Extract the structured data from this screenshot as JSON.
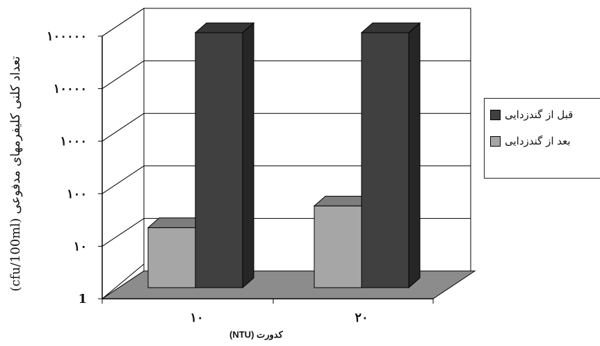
{
  "chart_data": {
    "type": "bar",
    "style": "3d",
    "yscale": "log",
    "ylim": [
      1,
      100000
    ],
    "yticks": [
      1,
      10,
      100,
      1000,
      10000,
      100000
    ],
    "ytick_labels": [
      "1",
      "۱۰",
      "۱۰۰",
      "۱۰۰۰",
      "۱۰۰۰۰",
      "۱۰۰۰۰۰"
    ],
    "categories": [
      "۱۰",
      "۲۰"
    ],
    "series": [
      {
        "name": "بعد از گندزدایی",
        "color": "#a6a6a6",
        "values": [
          15,
          40
        ]
      },
      {
        "name": "قبل از گندزدایی",
        "color": "#404040",
        "values": [
          100000,
          100000
        ]
      }
    ],
    "xlabel": "کدورت (NTU)",
    "ylabel": "تعداد کلنی کلیفرمهای مدفوعی (cfu/100ml)",
    "legend_position": "right",
    "grid": true
  }
}
